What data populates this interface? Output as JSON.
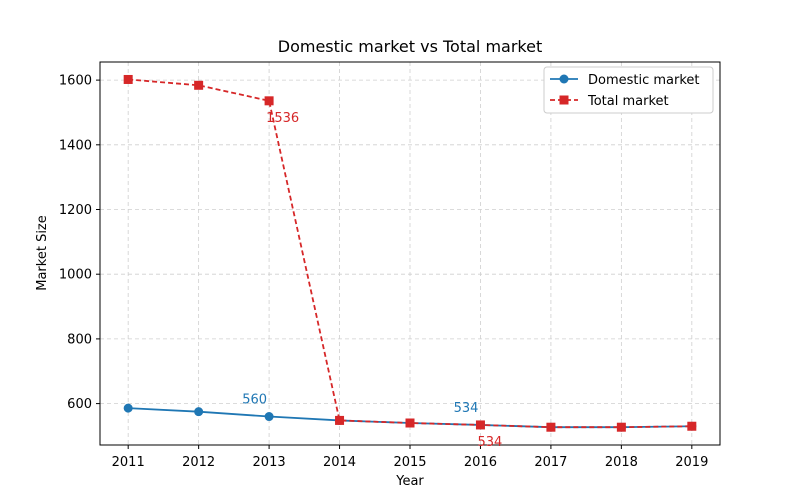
{
  "chart_data": {
    "type": "line",
    "title": "Domestic market vs Total market",
    "xlabel": "Year",
    "ylabel": "Market Size",
    "x": [
      2011,
      2012,
      2013,
      2014,
      2015,
      2016,
      2017,
      2018,
      2019
    ],
    "xlim": [
      2010.6,
      2019.4
    ],
    "ylim": [
      472,
      1656
    ],
    "yticks": [
      600,
      800,
      1000,
      1200,
      1400,
      1600
    ],
    "grid": true,
    "legend_position": "top-right",
    "series": [
      {
        "name": "Domestic market",
        "color": "#1f77b4",
        "marker": "circle",
        "linestyle": "solid",
        "values": [
          586,
          575,
          560,
          548,
          540,
          534,
          527,
          527,
          530
        ]
      },
      {
        "name": "Total market",
        "color": "#d62728",
        "marker": "square",
        "linestyle": "dashed",
        "values": [
          1602,
          1584,
          1536,
          548,
          540,
          534,
          527,
          527,
          530
        ]
      }
    ],
    "annotations": [
      {
        "series": 0,
        "x": 2013,
        "text": "560"
      },
      {
        "series": 0,
        "x": 2016,
        "text": "534"
      },
      {
        "series": 1,
        "x": 2013,
        "text": "1536"
      },
      {
        "series": 1,
        "x": 2016,
        "text": "534"
      }
    ]
  }
}
